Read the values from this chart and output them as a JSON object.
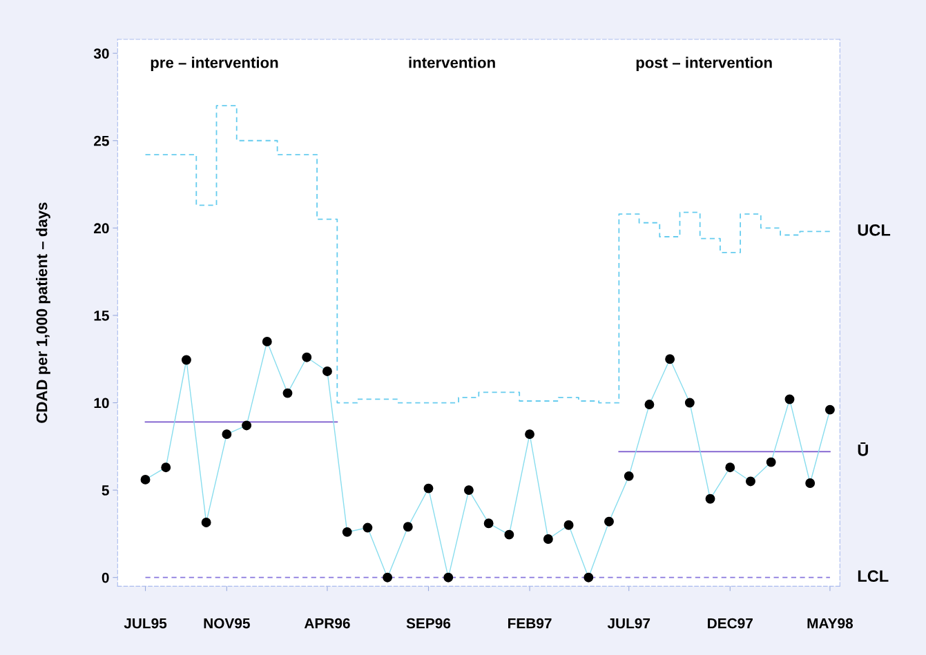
{
  "chart_data": {
    "type": "line",
    "ylabel": "CDAD per 1,000 patient – days",
    "x": [
      "1995-07",
      "1995-08",
      "1995-09",
      "1995-10",
      "1995-11",
      "1995-12",
      "1996-01",
      "1996-02",
      "1996-03",
      "1996-04",
      "1996-05",
      "1996-06",
      "1996-07",
      "1996-08",
      "1996-09",
      "1996-10",
      "1996-11",
      "1996-12",
      "1997-01",
      "1997-02",
      "1997-03",
      "1997-04",
      "1997-05",
      "1997-06",
      "1997-07",
      "1997-08",
      "1997-09",
      "1997-10",
      "1997-11",
      "1997-12",
      "1998-01",
      "1998-02",
      "1998-03",
      "1998-04",
      "1998-05"
    ],
    "series": [
      {
        "type": "step",
        "name": "UCL",
        "color": "#66ccee",
        "line_style": "dashed",
        "marker": "none",
        "values": [
          24.2,
          24.2,
          24.2,
          21.3,
          27.0,
          25.0,
          25.0,
          24.2,
          24.2,
          20.5,
          10.0,
          10.2,
          10.2,
          10.0,
          10.0,
          10.0,
          10.3,
          10.6,
          10.6,
          10.1,
          10.1,
          10.3,
          10.1,
          10.0,
          20.8,
          20.3,
          19.5,
          20.9,
          19.4,
          18.6,
          20.8,
          20.0,
          19.6,
          19.8,
          19.8
        ]
      },
      {
        "type": "step",
        "name": "Ū",
        "color": "#7755cc",
        "line_style": "solid",
        "marker": "none",
        "values": [
          8.9,
          8.9,
          8.9,
          8.9,
          8.9,
          8.9,
          8.9,
          8.9,
          8.9,
          8.9,
          null,
          null,
          null,
          null,
          null,
          null,
          null,
          null,
          null,
          null,
          null,
          null,
          null,
          null,
          7.2,
          7.2,
          7.2,
          7.2,
          7.2,
          7.2,
          7.2,
          7.2,
          7.2,
          7.2,
          7.2
        ]
      },
      {
        "type": "step",
        "name": "LCL",
        "color": "#8877dd",
        "line_style": "dashed",
        "marker": "none",
        "values": [
          0,
          0,
          0,
          0,
          0,
          0,
          0,
          0,
          0,
          0,
          0,
          0,
          0,
          0,
          0,
          0,
          0,
          0,
          0,
          0,
          0,
          0,
          0,
          0,
          0,
          0,
          0,
          0,
          0,
          0,
          0,
          0,
          0,
          0,
          0
        ]
      },
      {
        "color": "#88ddee",
        "line_style": "solid",
        "marker": "circle",
        "values": [
          5.6,
          6.3,
          12.45,
          3.15,
          8.2,
          8.7,
          13.5,
          10.55,
          12.6,
          11.8,
          2.6,
          2.85,
          0,
          2.9,
          5.1,
          0,
          5.0,
          3.1,
          2.45,
          8.2,
          2.2,
          3.0,
          0,
          3.2,
          5.8,
          9.9,
          12.5,
          10.0,
          4.5,
          6.3,
          5.5,
          6.6,
          10.2,
          5.4,
          9.6
        ]
      }
    ],
    "annotations": [
      "pre – intervention",
      "intervention",
      "post – intervention"
    ],
    "xlim": [
      "1995-05-20",
      "1998-05-16"
    ],
    "xticks": [
      {
        "value": "1995-07",
        "label": "JUL95"
      },
      {
        "value": "1995-11",
        "label": "NOV95"
      },
      {
        "value": "1996-04",
        "label": "APR96"
      },
      {
        "value": "1996-09",
        "label": "SEP96"
      },
      {
        "value": "1997-02",
        "label": "FEB97"
      },
      {
        "value": "1997-07",
        "label": "JUL97"
      },
      {
        "value": "1997-12",
        "label": "DEC97"
      },
      {
        "value": "1998-05",
        "label": "MAY98"
      }
    ],
    "ylim": [
      -0.5,
      30.8
    ],
    "yticks": [
      0,
      5,
      10,
      15,
      20,
      25,
      30
    ],
    "grid": false,
    "legend": false
  }
}
